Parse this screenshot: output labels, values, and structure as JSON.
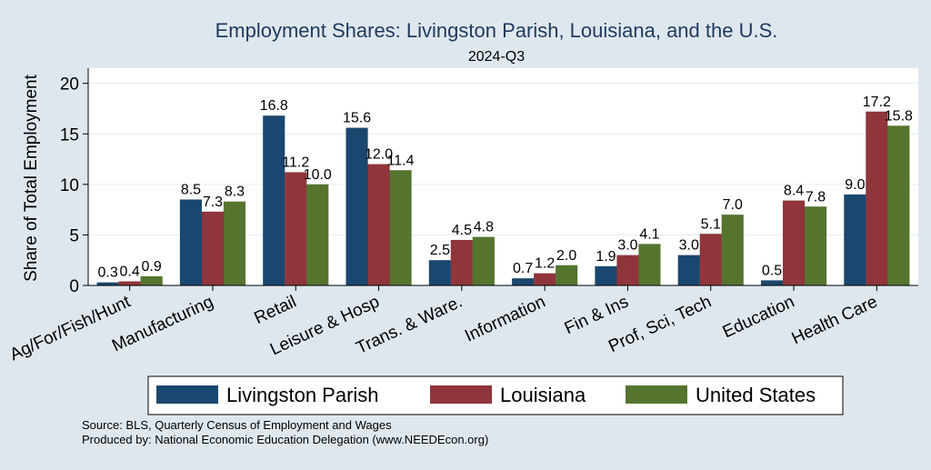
{
  "chart_data": {
    "type": "bar",
    "title": "Employment Shares: Livingston Parish, Louisiana, and the U.S.",
    "subtitle": "2024-Q3",
    "ylabel": "Share of Total Employment",
    "xlabel": "",
    "ylim": [
      0,
      21.5
    ],
    "yticks": [
      0,
      5,
      10,
      15,
      20
    ],
    "grid": true,
    "legend_position": "bottom",
    "categories": [
      "Ag/For/Fish/Hunt",
      "Manufacturing",
      "Retail",
      "Leisure & Hosp",
      "Trans. & Ware.",
      "Information",
      "Fin & Ins",
      "Prof, Sci, Tech",
      "Education",
      "Health Care"
    ],
    "series": [
      {
        "name": "Livingston Parish",
        "color": "#1a476f",
        "values": [
          0.3,
          8.5,
          16.8,
          15.6,
          2.5,
          0.7,
          1.9,
          3.0,
          0.5,
          9.0
        ],
        "labels": [
          "0.3",
          "8.5",
          "16.8",
          "15.6",
          "2.5",
          "0.7",
          "1.9",
          "3.0",
          "0.5",
          "9.0"
        ]
      },
      {
        "name": "Louisiana",
        "color": "#90353b",
        "values": [
          0.4,
          7.3,
          11.2,
          12.0,
          4.5,
          1.2,
          3.0,
          5.1,
          8.4,
          17.2
        ],
        "labels": [
          "0.4",
          "7.3",
          "11.2",
          "12.0",
          "4.5",
          "1.2",
          "3.0",
          "5.1",
          "8.4",
          "17.2"
        ]
      },
      {
        "name": "United States",
        "color": "#55752f",
        "values": [
          0.9,
          8.3,
          10.0,
          11.4,
          4.8,
          2.0,
          4.1,
          7.0,
          7.8,
          15.8
        ],
        "labels": [
          "0.9",
          "8.3",
          "10.0",
          "11.4",
          "4.8",
          "2.0",
          "4.1",
          "7.0",
          "7.8",
          "15.8"
        ]
      }
    ],
    "notes": [
      "Source: BLS, Quarterly Census of Employment and Wages",
      "Produced by: National Economic Education Delegation (www.NEEDEcon.org)"
    ]
  },
  "colors": {
    "background": "#dfe7ee",
    "plot_background": "#ffffff",
    "title": "#1e3a5f"
  }
}
